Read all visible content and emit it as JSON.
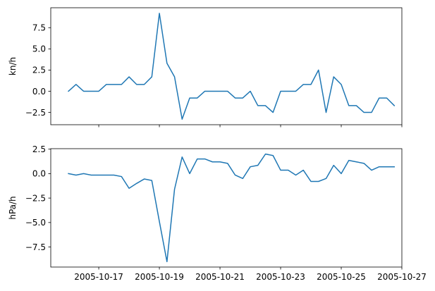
{
  "chart_data": [
    {
      "type": "line",
      "title": "",
      "xlabel": "",
      "ylabel": "kn/h",
      "x": [
        "2005-10-16T00:00",
        "2005-10-16T06:00",
        "2005-10-16T12:00",
        "2005-10-16T18:00",
        "2005-10-17T00:00",
        "2005-10-17T06:00",
        "2005-10-17T12:00",
        "2005-10-17T18:00",
        "2005-10-18T00:00",
        "2005-10-18T06:00",
        "2005-10-18T12:00",
        "2005-10-18T18:00",
        "2005-10-19T00:00",
        "2005-10-19T06:00",
        "2005-10-19T12:00",
        "2005-10-19T18:00",
        "2005-10-20T00:00",
        "2005-10-20T06:00",
        "2005-10-20T12:00",
        "2005-10-20T18:00",
        "2005-10-21T00:00",
        "2005-10-21T06:00",
        "2005-10-21T12:00",
        "2005-10-21T18:00",
        "2005-10-22T00:00",
        "2005-10-22T06:00",
        "2005-10-22T12:00",
        "2005-10-22T18:00",
        "2005-10-23T00:00",
        "2005-10-23T06:00",
        "2005-10-23T12:00",
        "2005-10-23T18:00",
        "2005-10-24T00:00",
        "2005-10-24T06:00",
        "2005-10-24T12:00",
        "2005-10-24T18:00",
        "2005-10-25T00:00",
        "2005-10-25T06:00",
        "2005-10-25T12:00",
        "2005-10-25T18:00",
        "2005-10-26T00:00",
        "2005-10-26T06:00",
        "2005-10-26T12:00",
        "2005-10-26T18:00"
      ],
      "series": [
        {
          "values": [
            0,
            0.8,
            0,
            0,
            0,
            0.8,
            0.8,
            0.8,
            1.7,
            0.8,
            0.8,
            1.7,
            9.2,
            3.3,
            1.7,
            -3.3,
            -0.8,
            -0.8,
            0,
            0,
            0,
            0,
            -0.8,
            -0.8,
            0,
            -1.7,
            -1.7,
            -2.5,
            0,
            0,
            0,
            0.8,
            0.8,
            2.5,
            -2.5,
            1.7,
            0.8,
            -1.7,
            -1.7,
            -2.5,
            -2.5,
            -0.8,
            -0.8,
            -1.7
          ]
        }
      ],
      "ylim": [
        -3.95,
        9.85
      ],
      "yticks": [
        -2.5,
        0.0,
        2.5,
        5.0,
        7.5
      ],
      "ytick_labels": [
        "−2.5",
        "0.0",
        "2.5",
        "5.0",
        "7.5"
      ],
      "xtick_labels_visible": false,
      "grid": false,
      "color": "#1f77b4"
    },
    {
      "type": "line",
      "title": "",
      "xlabel": "",
      "ylabel": "hPa/h",
      "x": [
        "2005-10-16T00:00",
        "2005-10-16T06:00",
        "2005-10-16T12:00",
        "2005-10-16T18:00",
        "2005-10-17T00:00",
        "2005-10-17T06:00",
        "2005-10-17T12:00",
        "2005-10-17T18:00",
        "2005-10-18T00:00",
        "2005-10-18T06:00",
        "2005-10-18T12:00",
        "2005-10-18T18:00",
        "2005-10-19T00:00",
        "2005-10-19T06:00",
        "2005-10-19T12:00",
        "2005-10-19T18:00",
        "2005-10-20T00:00",
        "2005-10-20T06:00",
        "2005-10-20T12:00",
        "2005-10-20T18:00",
        "2005-10-21T00:00",
        "2005-10-21T06:00",
        "2005-10-21T12:00",
        "2005-10-21T18:00",
        "2005-10-22T00:00",
        "2005-10-22T06:00",
        "2005-10-22T12:00",
        "2005-10-22T18:00",
        "2005-10-23T00:00",
        "2005-10-23T06:00",
        "2005-10-23T12:00",
        "2005-10-23T18:00",
        "2005-10-24T00:00",
        "2005-10-24T06:00",
        "2005-10-24T12:00",
        "2005-10-24T18:00",
        "2005-10-25T00:00",
        "2005-10-25T06:00",
        "2005-10-25T12:00",
        "2005-10-25T18:00",
        "2005-10-26T00:00",
        "2005-10-26T06:00",
        "2005-10-26T12:00",
        "2005-10-26T18:00"
      ],
      "series": [
        {
          "values": [
            0,
            -0.15,
            0,
            -0.15,
            -0.15,
            -0.15,
            -0.15,
            -0.3,
            -1.5,
            -1.0,
            -0.55,
            -0.7,
            -4.9,
            -9.0,
            -1.6,
            1.7,
            0,
            1.5,
            1.5,
            1.2,
            1.2,
            1.05,
            -0.15,
            -0.5,
            0.7,
            0.85,
            2.0,
            1.85,
            0.35,
            0.35,
            -0.15,
            0.35,
            -0.8,
            -0.8,
            -0.5,
            0.85,
            0,
            1.35,
            1.2,
            1.05,
            0.35,
            0.7,
            0.7,
            0.7
          ]
        }
      ],
      "ylim": [
        -9.55,
        2.55
      ],
      "yticks": [
        -7.5,
        -5.0,
        -2.5,
        0.0,
        2.5
      ],
      "ytick_labels": [
        "−7.5",
        "−5.0",
        "−2.5",
        "0.0",
        "2.5"
      ],
      "xticks": [
        "2005-10-17",
        "2005-10-19",
        "2005-10-21",
        "2005-10-23",
        "2005-10-25",
        "2005-10-27"
      ],
      "xtick_labels": [
        "2005-10-17",
        "2005-10-19",
        "2005-10-21",
        "2005-10-23",
        "2005-10-25",
        "2005-10-27"
      ],
      "grid": false,
      "color": "#1f77b4"
    }
  ]
}
